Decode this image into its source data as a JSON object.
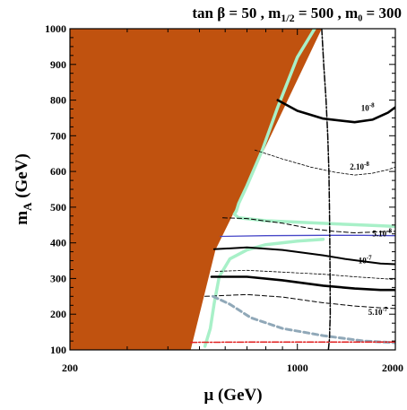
{
  "chart_data": {
    "type": "line",
    "title": {
      "tanb_label": "tan β = 50",
      "m12_main": "m",
      "m12_sub": "1/2",
      "m12_value": " = 500",
      "m0_label": "m₀ = 300",
      "separator": " , "
    },
    "xlabel": "μ (GeV)",
    "ylabel_main": "m",
    "ylabel_sub": "A",
    "ylabel_unit": " (GeV)",
    "xlim": [
      200,
      2000
    ],
    "ylim": [
      100,
      1000
    ],
    "xticks_major": [
      200,
      1000,
      2000
    ],
    "yticks_major": [
      100,
      200,
      300,
      400,
      500,
      600,
      700,
      800,
      900,
      1000
    ],
    "grid": false,
    "colors": {
      "excluded": "#c0520f",
      "wmap": "#a8f0c8",
      "higgs_line": "#4848c8",
      "lep_line": "#e02020",
      "bsg_line": "#90a8b8",
      "contour": "#000000"
    },
    "regions": [
      {
        "name": "excluded",
        "points": [
          [
            200,
            100
          ],
          [
            200,
            1000
          ],
          [
            1188,
            1000
          ],
          [
            700,
            560
          ],
          [
            560,
            380
          ],
          [
            470,
            100
          ]
        ]
      }
    ],
    "series": [
      {
        "role": "wmap-strip",
        "style": "wmap",
        "points": [
          [
            1130,
            1000
          ],
          [
            1000,
            920
          ],
          [
            870,
            780
          ],
          [
            780,
            660
          ],
          [
            700,
            560
          ],
          [
            660,
            510
          ],
          [
            650,
            490
          ],
          [
            640,
            480
          ],
          [
            660,
            470
          ],
          [
            800,
            462
          ],
          [
            1000,
            458
          ],
          [
            1400,
            452
          ],
          [
            1800,
            448
          ],
          [
            2000,
            446
          ]
        ]
      },
      {
        "role": "wmap-strip",
        "style": "wmap",
        "points": [
          [
            520,
            110
          ],
          [
            540,
            160
          ],
          [
            555,
            230
          ],
          [
            575,
            305
          ],
          [
            620,
            355
          ],
          [
            700,
            380
          ],
          [
            800,
            395
          ],
          [
            1000,
            405
          ],
          [
            1200,
            410
          ]
        ]
      },
      {
        "role": "contour",
        "style": "solid-thick",
        "points": [
          [
            870,
            800
          ],
          [
            1000,
            770
          ],
          [
            1200,
            748
          ],
          [
            1500,
            738
          ],
          [
            1700,
            745
          ],
          [
            1900,
            765
          ],
          [
            2000,
            780
          ]
        ]
      },
      {
        "role": "contour",
        "style": "dash-thin",
        "points": [
          [
            740,
            660
          ],
          [
            900,
            635
          ],
          [
            1100,
            612
          ],
          [
            1300,
            598
          ],
          [
            1500,
            590
          ],
          [
            1700,
            595
          ],
          [
            1900,
            605
          ],
          [
            2000,
            612
          ]
        ]
      },
      {
        "role": "contour",
        "style": "dash",
        "points": [
          [
            590,
            470
          ],
          [
            700,
            468
          ],
          [
            900,
            455
          ],
          [
            1100,
            440
          ],
          [
            1300,
            432
          ],
          [
            1500,
            428
          ],
          [
            1700,
            430
          ],
          [
            1900,
            432
          ],
          [
            2000,
            432
          ]
        ]
      },
      {
        "role": "higgs",
        "style": "higgs",
        "points": [
          [
            580,
            418
          ],
          [
            800,
            420
          ],
          [
            1200,
            421
          ],
          [
            1600,
            421
          ],
          [
            2000,
            420
          ]
        ]
      },
      {
        "role": "contour",
        "style": "solid",
        "points": [
          [
            555,
            382
          ],
          [
            700,
            387
          ],
          [
            900,
            380
          ],
          [
            1200,
            365
          ],
          [
            1400,
            355
          ],
          [
            1600,
            348
          ],
          [
            1800,
            342
          ],
          [
            2000,
            340
          ]
        ]
      },
      {
        "role": "contour",
        "style": "dash-thin",
        "points": [
          [
            560,
            320
          ],
          [
            700,
            323
          ],
          [
            900,
            318
          ],
          [
            1200,
            312
          ],
          [
            1500,
            305
          ],
          [
            1800,
            300
          ],
          [
            2000,
            297
          ]
        ]
      },
      {
        "role": "contour",
        "style": "solid-thick",
        "points": [
          [
            545,
            305
          ],
          [
            700,
            305
          ],
          [
            900,
            295
          ],
          [
            1200,
            280
          ],
          [
            1500,
            272
          ],
          [
            1800,
            268
          ],
          [
            2000,
            268
          ]
        ]
      },
      {
        "role": "contour",
        "style": "dash",
        "points": [
          [
            520,
            250
          ],
          [
            700,
            255
          ],
          [
            900,
            248
          ],
          [
            1200,
            232
          ],
          [
            1500,
            223
          ],
          [
            1800,
            218
          ],
          [
            2000,
            216
          ]
        ]
      },
      {
        "role": "bsg",
        "style": "bsg",
        "points": [
          [
            550,
            250
          ],
          [
            620,
            228
          ],
          [
            720,
            190
          ],
          [
            900,
            160
          ],
          [
            1200,
            140
          ],
          [
            1600,
            125
          ],
          [
            2000,
            120
          ]
        ]
      },
      {
        "role": "gmu",
        "style": "dashdot",
        "points": [
          [
            1188,
            1000
          ],
          [
            1205,
            900
          ],
          [
            1225,
            800
          ],
          [
            1240,
            700
          ],
          [
            1250,
            600
          ],
          [
            1255,
            500
          ],
          [
            1258,
            400
          ],
          [
            1260,
            300
          ],
          [
            1262,
            200
          ],
          [
            1255,
            130
          ],
          [
            1245,
            100
          ]
        ]
      },
      {
        "role": "lep",
        "style": "lep",
        "points": [
          [
            470,
            121
          ],
          [
            800,
            122
          ],
          [
            1200,
            122
          ],
          [
            1600,
            122
          ],
          [
            2000,
            122
          ]
        ]
      }
    ],
    "annotations": [
      {
        "base": "10",
        "exp": "-8",
        "x": 1570,
        "y": 770
      },
      {
        "base": "2.10",
        "exp": "-8",
        "x": 1450,
        "y": 605
      },
      {
        "base": "5.10",
        "exp": "-8",
        "x": 1700,
        "y": 418
      },
      {
        "base": "10",
        "exp": "-7",
        "x": 1540,
        "y": 342
      },
      {
        "base": "5.10",
        "exp": "-7",
        "x": 1650,
        "y": 198
      }
    ]
  }
}
